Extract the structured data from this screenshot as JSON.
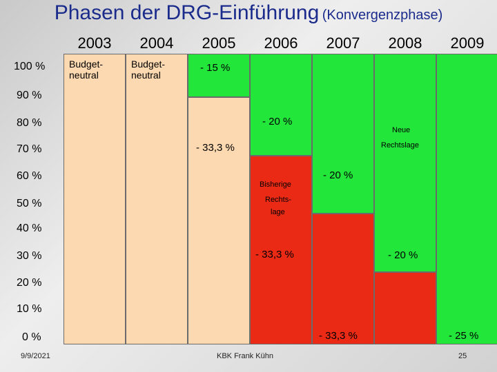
{
  "title": {
    "main": "Phasen der DRG-Einführung",
    "sub": "(Konvergenzphase)"
  },
  "years": [
    "2003",
    "2004",
    "2005",
    "2006",
    "2007",
    "2008",
    "2009"
  ],
  "percent_labels": [
    "100 %",
    "90 %",
    "80 %",
    "70 %",
    "60 %",
    "50 %",
    "40 %",
    "30 %",
    "20 %",
    "10 %",
    "0 %"
  ],
  "colors": {
    "neutral": "#fcd9b0",
    "green": "#22e63a",
    "red": "#ea2a14"
  },
  "cells": {
    "col2003": "Budget-\nneutral",
    "col2004": "Budget-\nneutral",
    "col2005_top": "- 15 %",
    "col2006_a": "- 20 %",
    "col2005_b": "- 33,3 %",
    "col2006_old1": "Bisherige",
    "col2006_old2": "Rechts-",
    "col2006_old3": "lage",
    "col2006_b": "- 33,3 %",
    "col2007_new1": "Neue",
    "col2007_new2": "Rechtslage",
    "col2007_a": "- 20 %",
    "col2008_a": "- 20 %",
    "col2007_b": "- 33,3 %",
    "col2009": "- 25 %"
  },
  "footer": {
    "date": "9/9/2021",
    "author": "KBK Frank Kühn",
    "page": "25"
  }
}
